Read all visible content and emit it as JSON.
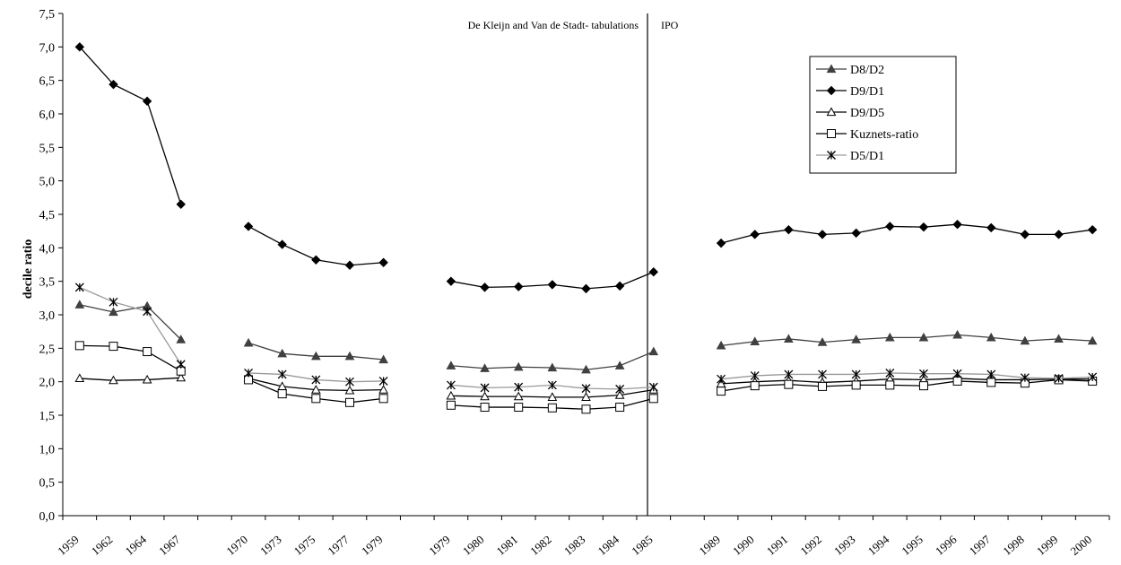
{
  "chart_data": {
    "type": "line",
    "title": "",
    "xlabel": "",
    "ylabel": "decile ratio",
    "ylim": [
      0,
      7.5
    ],
    "y_ticks": [
      "0,0",
      "0,5",
      "1,0",
      "1,5",
      "2,0",
      "2,5",
      "3,0",
      "3,5",
      "4,0",
      "4,5",
      "5,0",
      "5,5",
      "6,0",
      "6,5",
      "7,0",
      "7,5"
    ],
    "categories": [
      "1959",
      "1962",
      "1964",
      "1967",
      "",
      "1970",
      "1973",
      "1975",
      "1977",
      "1979",
      "",
      "1979",
      "1980",
      "1981",
      "1982",
      "1983",
      "1984",
      "1985",
      "",
      "1989",
      "1990",
      "1991",
      "1992",
      "1993",
      "1994",
      "1995",
      "1996",
      "1997",
      "1998",
      "1999",
      "2000"
    ],
    "grid": false,
    "legend_position": "top-right",
    "annotations": [
      "De Kleijn and Van de Stadt- tabulations",
      "IPO"
    ],
    "series": [
      {
        "name": "D8/D2",
        "marker": "filled-triangle",
        "color": "#404040",
        "values": [
          3.15,
          3.04,
          3.13,
          2.63,
          null,
          2.58,
          2.42,
          2.38,
          2.38,
          2.33,
          null,
          2.24,
          2.2,
          2.22,
          2.21,
          2.18,
          2.24,
          2.45,
          null,
          2.54,
          2.6,
          2.64,
          2.59,
          2.63,
          2.66,
          2.66,
          2.7,
          2.66,
          2.61,
          2.64,
          2.61
        ]
      },
      {
        "name": "D9/D1",
        "marker": "filled-diamond",
        "color": "#000000",
        "values": [
          7.0,
          6.44,
          6.19,
          4.65,
          null,
          4.32,
          4.05,
          3.82,
          3.74,
          3.78,
          null,
          3.5,
          3.41,
          3.42,
          3.45,
          3.39,
          3.43,
          3.64,
          null,
          4.07,
          4.2,
          4.27,
          4.2,
          4.22,
          4.32,
          4.31,
          4.35,
          4.3,
          4.2,
          4.2,
          4.27
        ]
      },
      {
        "name": "D9/D5",
        "marker": "open-triangle",
        "color": "#000000",
        "values": [
          2.05,
          2.02,
          2.03,
          2.06,
          null,
          2.05,
          1.93,
          1.88,
          1.87,
          1.88,
          null,
          1.79,
          1.78,
          1.78,
          1.77,
          1.77,
          1.8,
          1.88,
          null,
          1.97,
          2.0,
          2.02,
          1.99,
          2.01,
          2.04,
          2.03,
          2.05,
          2.03,
          2.03,
          2.04,
          2.04
        ]
      },
      {
        "name": "Kuznets-ratio",
        "marker": "open-square",
        "color": "#000000",
        "values": [
          2.54,
          2.53,
          2.45,
          2.16,
          null,
          2.03,
          1.82,
          1.75,
          1.69,
          1.75,
          null,
          1.65,
          1.62,
          1.62,
          1.61,
          1.59,
          1.62,
          1.75,
          null,
          1.86,
          1.94,
          1.96,
          1.93,
          1.95,
          1.95,
          1.94,
          2.01,
          1.99,
          1.98,
          2.03,
          2.01
        ]
      },
      {
        "name": "D5/D1",
        "marker": "asterisk",
        "color": "#999999",
        "values": [
          3.41,
          3.19,
          3.05,
          2.26,
          null,
          2.13,
          2.11,
          2.03,
          2.0,
          2.01,
          null,
          1.95,
          1.91,
          1.92,
          1.95,
          1.9,
          1.89,
          1.92,
          null,
          2.04,
          2.09,
          2.11,
          2.11,
          2.11,
          2.13,
          2.12,
          2.12,
          2.11,
          2.06,
          2.05,
          2.07
        ]
      }
    ]
  }
}
